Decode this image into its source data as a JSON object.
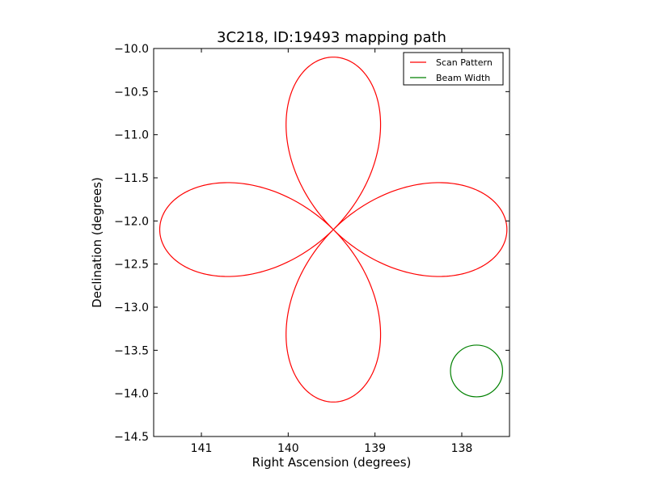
{
  "chart_data": {
    "type": "line",
    "title": "3C218, ID:19493 mapping path",
    "xlabel": "Right Ascension (degrees)",
    "ylabel": "Declination (degrees)",
    "xlim": [
      141.55,
      137.45
    ],
    "ylim": [
      -14.5,
      -10.0
    ],
    "x_ticks": [
      141,
      140,
      139,
      138
    ],
    "x_tick_labels": [
      "141",
      "140",
      "139",
      "138"
    ],
    "y_ticks": [
      -10.0,
      -10.5,
      -11.0,
      -11.5,
      -12.0,
      -12.5,
      -13.0,
      -13.5,
      -14.0,
      -14.5
    ],
    "y_tick_labels": [
      "−10.0",
      "−10.5",
      "−11.0",
      "−11.5",
      "−12.0",
      "−12.5",
      "−13.0",
      "−13.5",
      "−14.0",
      "−14.5"
    ],
    "grid": false,
    "legend_position": "top-right",
    "series": [
      {
        "name": "Scan Pattern",
        "color": "#ff0000",
        "shape": "four-petal rose",
        "center": [
          139.48,
          -12.1
        ],
        "petal_radius_deg": 2.0,
        "x": [
          139.48,
          139.32,
          139.0,
          138.6,
          138.1,
          137.8,
          137.47,
          137.8,
          138.3,
          138.7,
          139.1,
          139.48,
          139.7,
          140.0,
          140.5,
          140.95,
          141.3,
          141.53,
          141.3,
          140.95,
          140.5,
          140.0,
          139.7,
          139.48,
          139.3,
          139.12,
          139.0,
          139.12,
          139.3,
          139.48,
          139.7,
          139.98,
          140.13,
          139.98,
          139.7,
          139.48
        ],
        "y": [
          -12.1,
          -11.95,
          -11.75,
          -11.6,
          -11.55,
          -11.65,
          -12.1,
          -12.5,
          -12.65,
          -12.6,
          -12.45,
          -12.1,
          -11.85,
          -11.7,
          -11.57,
          -11.6,
          -11.8,
          -12.1,
          -12.45,
          -12.6,
          -12.6,
          -12.45,
          -12.3,
          -12.1,
          -11.75,
          -11.3,
          -10.6,
          -10.25,
          -10.12,
          -10.13,
          -10.35,
          -10.8,
          -11.2,
          -13.0,
          -13.8,
          -14.1
        ]
      },
      {
        "name": "Beam Width",
        "color": "#008000",
        "shape": "circle",
        "center": [
          137.83,
          -13.74
        ],
        "radius_deg": 0.3
      }
    ]
  }
}
